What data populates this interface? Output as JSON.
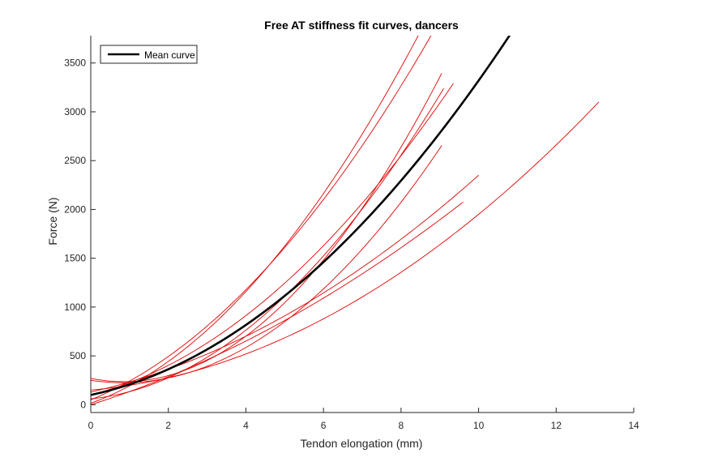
{
  "chart_data": {
    "type": "line",
    "title": "Free AT stiffness fit curves, dancers",
    "xlabel": "Tendon elongation (mm)",
    "ylabel": "Force (N)",
    "xlim": [
      0,
      14
    ],
    "ylim": [
      -80,
      3780
    ],
    "xticks": [
      0,
      2,
      4,
      6,
      8,
      10,
      12,
      14
    ],
    "yticks": [
      0,
      500,
      1000,
      1500,
      2000,
      2500,
      3000,
      3500
    ],
    "grid": false,
    "legend": {
      "position": "top-left",
      "entries": [
        "Mean curve"
      ]
    },
    "colors": {
      "individual": "#e00000",
      "mean": "#000000",
      "axis": "#262626"
    },
    "series": [
      {
        "name": "Mean curve",
        "color": "#000000",
        "coeffs": [
          100,
          84,
          23.8
        ],
        "xmax": 10.8
      },
      {
        "color": "#e00000",
        "coeffs": [
          15,
          142,
          36
        ],
        "xmax": 8.5
      },
      {
        "color": "#e00000",
        "coeffs": [
          50,
          162,
          30
        ],
        "xmax": 9.15
      },
      {
        "color": "#e00000",
        "coeffs": [
          60,
          40,
          34
        ],
        "xmax": 9.1
      },
      {
        "color": "#e00000",
        "coeffs": [
          100,
          100,
          25.8
        ],
        "xmax": 9.35
      },
      {
        "color": "#e00000",
        "coeffs": [
          150,
          34,
          14.6
        ],
        "xmax": 13.1
      },
      {
        "color": "#e00000",
        "coeffs": [
          130,
          90,
          13.2
        ],
        "xmax": 10.0
      },
      {
        "color": "#e00000",
        "coeffs": [
          0,
          125,
          9.5
        ],
        "xmax": 9.6
      },
      {
        "color": "#e00000",
        "coeffs": [
          270,
          -80,
          47
        ],
        "xmax": 9.05
      },
      {
        "color": "#e00000",
        "coeffs": [
          250,
          -60,
          36
        ],
        "xmax": 9.05
      }
    ]
  }
}
